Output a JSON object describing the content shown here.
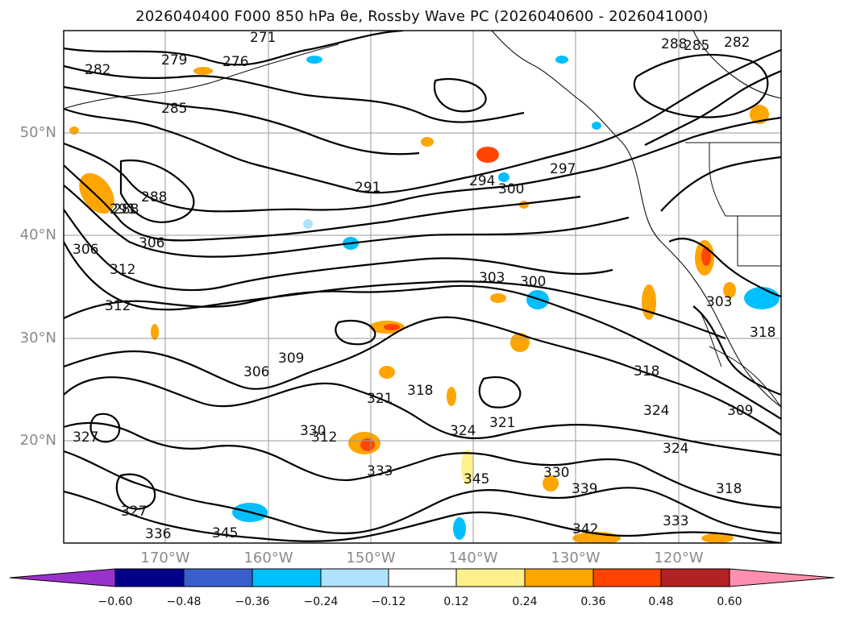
{
  "title": "2026040400 F000 850 hPa θe, Rossby Wave PC (2026040600 - 2026041000)",
  "map": {
    "latitude_labels": [
      "50°N",
      "40°N",
      "30°N",
      "20°N"
    ],
    "longitude_labels": [
      "170°W",
      "160°W",
      "150°W",
      "140°W",
      "130°W",
      "120°W"
    ],
    "contour_labels": [
      "271",
      "276",
      "279",
      "282",
      "285",
      "288",
      "288",
      "285",
      "282",
      "288",
      "291",
      "294",
      "297",
      "300",
      "291",
      "306",
      "306",
      "312",
      "312",
      "303",
      "300",
      "309",
      "306",
      "318",
      "321",
      "318",
      "324",
      "321",
      "324",
      "324",
      "327",
      "327",
      "330",
      "333",
      "330",
      "336",
      "339",
      "342",
      "345",
      "345",
      "333",
      "318",
      "309",
      "303",
      "318",
      "312"
    ],
    "colors": {
      "contour": "#000000",
      "grid": "#9a9a9a",
      "coast": "#111111"
    }
  },
  "colorbar": {
    "tick_labels": [
      "−0.60",
      "−0.48",
      "−0.36",
      "−0.24",
      "−0.12",
      "0.12",
      "0.24",
      "0.36",
      "0.48",
      "0.60"
    ],
    "colors": [
      "#9932cc",
      "#00008b",
      "#3a5fcd",
      "#00bfff",
      "#b0e2ff",
      "#ffffff",
      "#fff08c",
      "#ffa500",
      "#ff4500",
      "#b22222",
      "#ff8fae"
    ]
  }
}
